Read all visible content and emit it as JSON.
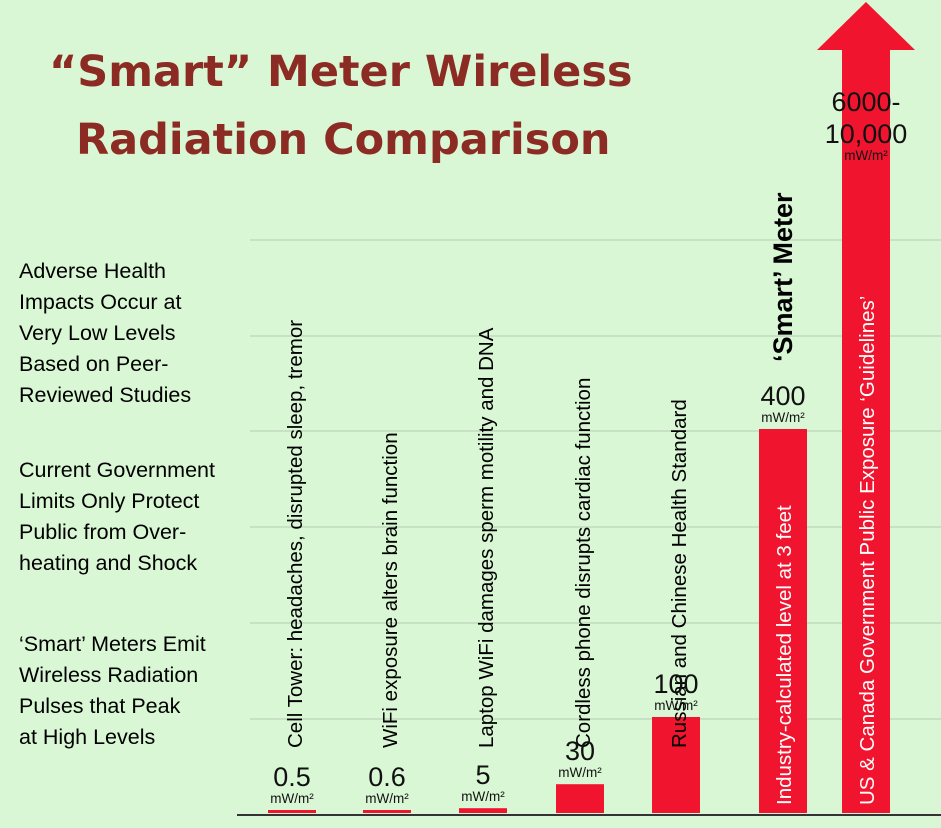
{
  "title_lines": [
    "“Smart” Meter Wireless",
    "Radiation Comparison"
  ],
  "side_notes": [
    [
      "Adverse Health",
      "Impacts Occur at",
      "Very Low Levels",
      "Based on Peer-",
      "Reviewed Studies"
    ],
    [
      "Current Government",
      "Limits Only Protect",
      "Public from Over-",
      "heating and Shock"
    ],
    [
      "‘Smart’ Meters Emit",
      "Wireless Radiation",
      "Pulses that Peak",
      "at High Levels"
    ]
  ],
  "colors": {
    "background": "#d9f7d4",
    "bar": "#f0142e",
    "title": "#8b2b23",
    "grid": "#b7c9b3"
  },
  "chart_data": {
    "type": "bar",
    "title": "“Smart” Meter Wireless Radiation Comparison",
    "unit": "mW/m²",
    "categories": [
      "Cell Tower: headaches, disrupted sleep, tremor",
      "WiFi exposure alters brain function",
      "Laptop WiFi damages sperm motility and DNA",
      "Cordless phone disrupts cardiac function",
      "Russian and Chinese Health Standard",
      "Industry-calculated level at 3 feet",
      "US & Canada Government Public Exposure ‘Guidelines’"
    ],
    "values": [
      0.5,
      0.6,
      5,
      30,
      100,
      400,
      6000
    ],
    "value_labels": [
      "0.5",
      "0.6",
      "5",
      "30",
      "100",
      "400",
      "6000-\n10,000"
    ],
    "bar_headings": [
      "",
      "",
      "",
      "",
      "",
      "‘Smart’ Meter",
      ""
    ],
    "arrow_top": [
      false,
      false,
      false,
      false,
      false,
      false,
      true
    ],
    "grid": true
  }
}
